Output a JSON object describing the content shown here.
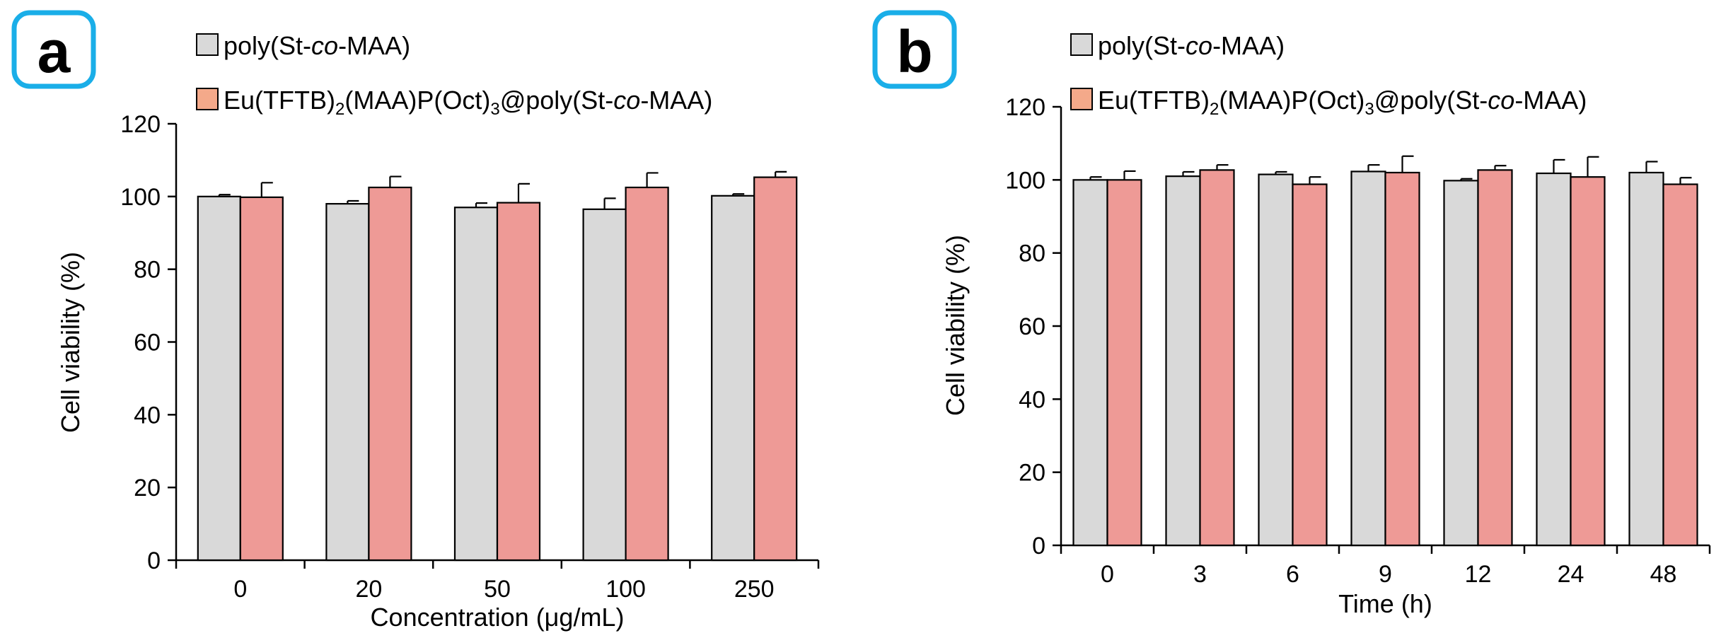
{
  "colors": {
    "poly": "#d9d9d9",
    "eu": "#ee9a96",
    "legend_eu_swatch": "#f4a98a",
    "panel_label": "#1aaee8",
    "stroke": "#000000"
  },
  "chart_data": [
    {
      "type": "bar",
      "panel_label": "a",
      "title": "",
      "xlabel": "Concentration (μg/mL)",
      "ylabel": "Cell viability (%)",
      "ylim": [
        0,
        120
      ],
      "yticks": [
        "0",
        "20",
        "40",
        "60",
        "80",
        "100",
        "120"
      ],
      "categories": [
        "0",
        "20",
        "50",
        "100",
        "250"
      ],
      "legend": {
        "position": "top-left",
        "entries": [
          {
            "pre": "poly(St-",
            "it": "co",
            "post": "-MAA)"
          },
          {
            "eu": true,
            "base": "Eu(TFTB)",
            "sub1": "2",
            "mid": "(MAA)P(Oct)",
            "sub2": "3",
            "pre2": "@poly(St-",
            "it": "co",
            "post": "-MAA)"
          }
        ]
      },
      "series": [
        {
          "name": "poly(St-co-MAA)",
          "values": [
            100,
            98,
            97,
            96.5,
            100.2
          ],
          "errors": [
            0.5,
            0.8,
            1.2,
            3.0,
            0.5
          ]
        },
        {
          "name": "Eu(TFTB)2(MAA)P(Oct)3@poly(St-co-MAA)",
          "values": [
            99.8,
            102.5,
            98.3,
            102.5,
            105.3
          ],
          "errors": [
            4.0,
            3.0,
            5.2,
            4.0,
            1.5
          ]
        }
      ]
    },
    {
      "type": "bar",
      "panel_label": "b",
      "title": "",
      "xlabel": "Time (h)",
      "ylabel": "Cell viability (%)",
      "ylim": [
        0,
        120
      ],
      "yticks": [
        "0",
        "20",
        "40",
        "60",
        "80",
        "100",
        "120"
      ],
      "categories": [
        "0",
        "3",
        "6",
        "9",
        "12",
        "24",
        "48"
      ],
      "legend": {
        "position": "top-left",
        "entries": [
          {
            "pre": "poly(St-",
            "it": "co",
            "post": "-MAA)"
          },
          {
            "eu": true,
            "base": "Eu(TFTB)",
            "sub1": "2",
            "mid": "(MAA)P(Oct)",
            "sub2": "3",
            "pre2": "@poly(St-",
            "it": "co",
            "post": "-MAA)"
          }
        ]
      },
      "series": [
        {
          "name": "poly(St-co-MAA)",
          "values": [
            100,
            101,
            101.5,
            102.3,
            99.8,
            101.8,
            102
          ],
          "errors": [
            0.8,
            1.2,
            0.7,
            1.8,
            0.5,
            3.7,
            3.0
          ]
        },
        {
          "name": "Eu(TFTB)2(MAA)P(Oct)3@poly(St-co-MAA)",
          "values": [
            100,
            102.7,
            98.8,
            102,
            102.7,
            100.8,
            98.8
          ],
          "errors": [
            2.4,
            1.4,
            2.0,
            4.5,
            1.2,
            5.5,
            1.8
          ]
        }
      ]
    }
  ]
}
